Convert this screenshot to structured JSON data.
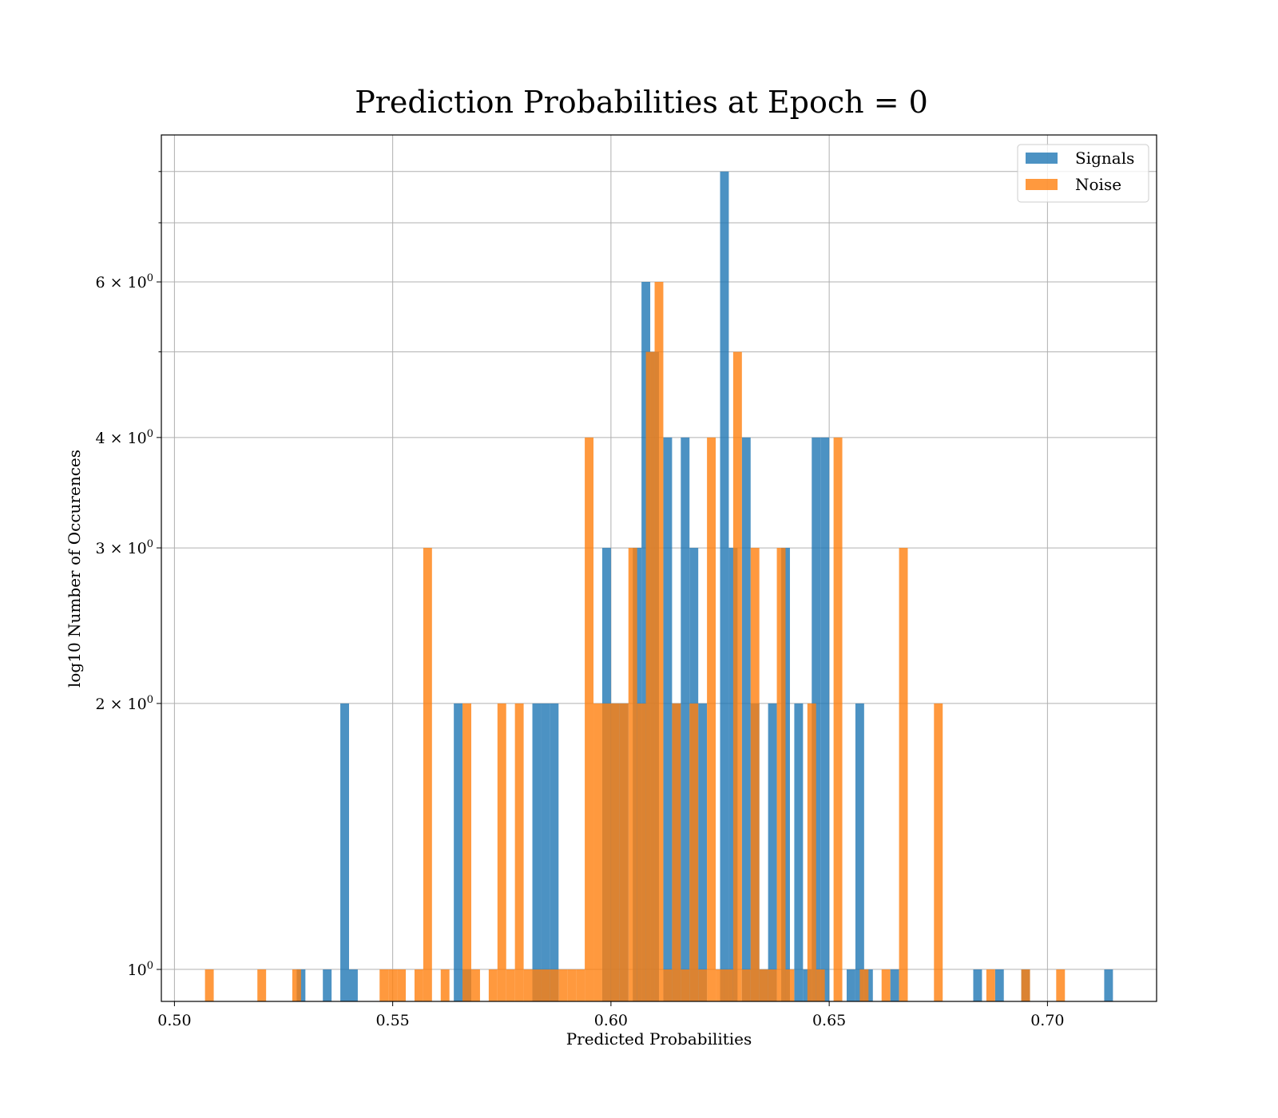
{
  "chart_data": {
    "type": "bar",
    "title": "Prediction Probabilities at Epoch = 0",
    "xlabel": "Predicted Probabilities",
    "ylabel": "log10 Number of Occurences",
    "xlim": [
      0.497,
      0.725
    ],
    "ylim": [
      0.92,
      8.8
    ],
    "yscale": "log",
    "grid": true,
    "legend_position": "top-right",
    "bin_width": 0.002,
    "x_ticks": [
      {
        "value": 0.5,
        "label": "0.50"
      },
      {
        "value": 0.55,
        "label": "0.55"
      },
      {
        "value": 0.6,
        "label": "0.60"
      },
      {
        "value": 0.65,
        "label": "0.65"
      },
      {
        "value": 0.7,
        "label": "0.70"
      }
    ],
    "y_ticks": [
      {
        "value": 1,
        "base": "10",
        "exp": "0"
      },
      {
        "value": 2,
        "base": "2 × 10",
        "exp": "0"
      },
      {
        "value": 3,
        "base": "3 × 10",
        "exp": "0"
      },
      {
        "value": 4,
        "base": "4 × 10",
        "exp": "0"
      },
      {
        "value": 6,
        "base": "6 × 10",
        "exp": "0"
      }
    ],
    "y_minor_gridlines": [
      5,
      7,
      8
    ],
    "series": [
      {
        "name": "Signals",
        "color": "#1f77b4",
        "opacity": 0.8,
        "bins": [
          {
            "x": 0.529,
            "count": 1
          },
          {
            "x": 0.535,
            "count": 1
          },
          {
            "x": 0.539,
            "count": 2
          },
          {
            "x": 0.541,
            "count": 1
          },
          {
            "x": 0.565,
            "count": 2
          },
          {
            "x": 0.567,
            "count": 1
          },
          {
            "x": 0.583,
            "count": 2
          },
          {
            "x": 0.585,
            "count": 2
          },
          {
            "x": 0.587,
            "count": 2
          },
          {
            "x": 0.599,
            "count": 3
          },
          {
            "x": 0.601,
            "count": 2
          },
          {
            "x": 0.603,
            "count": 2
          },
          {
            "x": 0.606,
            "count": 3
          },
          {
            "x": 0.608,
            "count": 6
          },
          {
            "x": 0.61,
            "count": 5
          },
          {
            "x": 0.613,
            "count": 4
          },
          {
            "x": 0.615,
            "count": 2
          },
          {
            "x": 0.617,
            "count": 4
          },
          {
            "x": 0.619,
            "count": 3
          },
          {
            "x": 0.621,
            "count": 2
          },
          {
            "x": 0.626,
            "count": 8
          },
          {
            "x": 0.628,
            "count": 3
          },
          {
            "x": 0.631,
            "count": 4
          },
          {
            "x": 0.633,
            "count": 2
          },
          {
            "x": 0.635,
            "count": 1
          },
          {
            "x": 0.637,
            "count": 2
          },
          {
            "x": 0.64,
            "count": 3
          },
          {
            "x": 0.643,
            "count": 2
          },
          {
            "x": 0.645,
            "count": 1
          },
          {
            "x": 0.647,
            "count": 4
          },
          {
            "x": 0.649,
            "count": 4
          },
          {
            "x": 0.655,
            "count": 1
          },
          {
            "x": 0.657,
            "count": 2
          },
          {
            "x": 0.659,
            "count": 1
          },
          {
            "x": 0.665,
            "count": 1
          },
          {
            "x": 0.684,
            "count": 1
          },
          {
            "x": 0.689,
            "count": 1
          },
          {
            "x": 0.695,
            "count": 1
          },
          {
            "x": 0.714,
            "count": 1
          }
        ]
      },
      {
        "name": "Noise",
        "color": "#ff7f0e",
        "opacity": 0.8,
        "bins": [
          {
            "x": 0.508,
            "count": 1
          },
          {
            "x": 0.52,
            "count": 1
          },
          {
            "x": 0.528,
            "count": 1
          },
          {
            "x": 0.548,
            "count": 1
          },
          {
            "x": 0.55,
            "count": 1
          },
          {
            "x": 0.552,
            "count": 1
          },
          {
            "x": 0.556,
            "count": 1
          },
          {
            "x": 0.558,
            "count": 3
          },
          {
            "x": 0.562,
            "count": 1
          },
          {
            "x": 0.567,
            "count": 2
          },
          {
            "x": 0.569,
            "count": 1
          },
          {
            "x": 0.573,
            "count": 1
          },
          {
            "x": 0.575,
            "count": 2
          },
          {
            "x": 0.577,
            "count": 1
          },
          {
            "x": 0.579,
            "count": 2
          },
          {
            "x": 0.581,
            "count": 1
          },
          {
            "x": 0.583,
            "count": 1
          },
          {
            "x": 0.585,
            "count": 1
          },
          {
            "x": 0.587,
            "count": 1
          },
          {
            "x": 0.589,
            "count": 1
          },
          {
            "x": 0.591,
            "count": 1
          },
          {
            "x": 0.593,
            "count": 1
          },
          {
            "x": 0.595,
            "count": 4
          },
          {
            "x": 0.597,
            "count": 2
          },
          {
            "x": 0.599,
            "count": 2
          },
          {
            "x": 0.601,
            "count": 2
          },
          {
            "x": 0.603,
            "count": 2
          },
          {
            "x": 0.605,
            "count": 3
          },
          {
            "x": 0.607,
            "count": 2
          },
          {
            "x": 0.609,
            "count": 5
          },
          {
            "x": 0.611,
            "count": 6
          },
          {
            "x": 0.613,
            "count": 1
          },
          {
            "x": 0.615,
            "count": 2
          },
          {
            "x": 0.617,
            "count": 1
          },
          {
            "x": 0.619,
            "count": 2
          },
          {
            "x": 0.621,
            "count": 1
          },
          {
            "x": 0.623,
            "count": 4
          },
          {
            "x": 0.625,
            "count": 1
          },
          {
            "x": 0.627,
            "count": 1
          },
          {
            "x": 0.629,
            "count": 5
          },
          {
            "x": 0.631,
            "count": 1
          },
          {
            "x": 0.633,
            "count": 3
          },
          {
            "x": 0.635,
            "count": 1
          },
          {
            "x": 0.637,
            "count": 1
          },
          {
            "x": 0.639,
            "count": 3
          },
          {
            "x": 0.641,
            "count": 1
          },
          {
            "x": 0.646,
            "count": 2
          },
          {
            "x": 0.648,
            "count": 1
          },
          {
            "x": 0.652,
            "count": 4
          },
          {
            "x": 0.658,
            "count": 1
          },
          {
            "x": 0.663,
            "count": 1
          },
          {
            "x": 0.667,
            "count": 3
          },
          {
            "x": 0.675,
            "count": 2
          },
          {
            "x": 0.687,
            "count": 1
          },
          {
            "x": 0.695,
            "count": 1
          },
          {
            "x": 0.703,
            "count": 1
          }
        ]
      }
    ]
  }
}
